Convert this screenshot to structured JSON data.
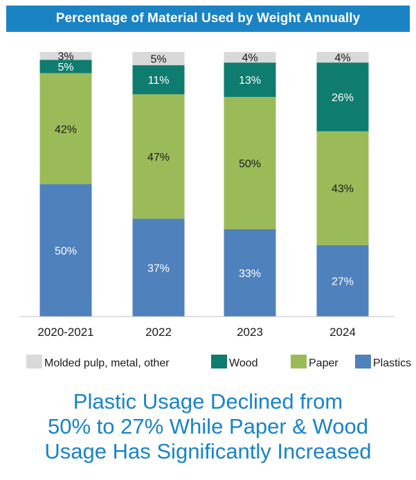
{
  "chart_data": {
    "type": "bar",
    "stacked": true,
    "title": "Percentage of Material Used by Weight Annually",
    "categories": [
      "2020-2021",
      "2022",
      "2023",
      "2024"
    ],
    "series": [
      {
        "name": "Plastics",
        "color": "#4f81bd",
        "values": [
          50,
          37,
          33,
          27
        ],
        "labels": [
          "50%",
          "37%",
          "33%",
          "27%"
        ]
      },
      {
        "name": "Paper",
        "color": "#9bbb59",
        "values": [
          42,
          47,
          50,
          43
        ],
        "labels": [
          "42%",
          "47%",
          "50%",
          "43%"
        ]
      },
      {
        "name": "Wood",
        "color": "#0e7c6e",
        "values": [
          5,
          11,
          13,
          26
        ],
        "labels": [
          "5%",
          "11%",
          "13%",
          "26%"
        ]
      },
      {
        "name": "Molded pulp, metal, other",
        "color": "#d9d9d9",
        "values": [
          3,
          5,
          4,
          4
        ],
        "labels": [
          "3%",
          "5%",
          "4%",
          "4%"
        ]
      }
    ],
    "legend_order": [
      "Molded pulp, metal, other",
      "Wood",
      "Paper",
      "Plastics"
    ],
    "legend_position": "bottom",
    "grid": false
  },
  "headline": {
    "line1": "Plastic Usage Declined from",
    "line2": "50% to 27% While Paper & Wood",
    "line3": "Usage Has Significantly Increased"
  }
}
